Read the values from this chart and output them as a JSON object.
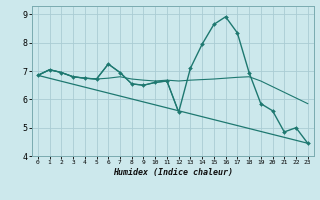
{
  "title": "",
  "xlabel": "Humidex (Indice chaleur)",
  "bg_color": "#cce8ec",
  "grid_color": "#aaccd4",
  "line_color": "#1e7870",
  "xlim": [
    -0.5,
    23.5
  ],
  "ylim": [
    4,
    9.3
  ],
  "yticks": [
    4,
    5,
    6,
    7,
    8,
    9
  ],
  "xticks": [
    0,
    1,
    2,
    3,
    4,
    5,
    6,
    7,
    8,
    9,
    10,
    11,
    12,
    13,
    14,
    15,
    16,
    17,
    18,
    19,
    20,
    21,
    22,
    23
  ],
  "series": [
    {
      "x": [
        0,
        1,
        2,
        3,
        4,
        5,
        6,
        7,
        8,
        9,
        10,
        11,
        12,
        13,
        14,
        15,
        16,
        17,
        18,
        19,
        20,
        21,
        22,
        23
      ],
      "y": [
        6.85,
        7.05,
        6.95,
        6.8,
        6.75,
        6.72,
        7.25,
        6.95,
        6.55,
        6.5,
        6.6,
        6.65,
        5.55,
        7.1,
        7.95,
        8.65,
        8.92,
        8.35,
        6.95,
        5.85,
        5.6,
        4.85,
        5.0,
        4.45
      ],
      "linewidth": 1.0,
      "markersize": 2.0
    },
    {
      "x": [
        0,
        23
      ],
      "y": [
        6.85,
        4.45
      ],
      "linewidth": 0.9,
      "markersize": 0
    },
    {
      "x": [
        0,
        1,
        2,
        3,
        4,
        5,
        6,
        7,
        8,
        9,
        10,
        11,
        12,
        13,
        14,
        15,
        16,
        17,
        18,
        19,
        20,
        21,
        22,
        23
      ],
      "y": [
        6.85,
        7.05,
        6.95,
        6.8,
        6.75,
        6.72,
        6.75,
        6.8,
        6.72,
        6.68,
        6.65,
        6.68,
        6.65,
        6.68,
        6.7,
        6.72,
        6.75,
        6.78,
        6.8,
        6.65,
        6.45,
        6.25,
        6.05,
        5.85
      ],
      "linewidth": 0.8,
      "markersize": 0
    },
    {
      "x": [
        0,
        1,
        2,
        3,
        4,
        5,
        6,
        7,
        8,
        9,
        10,
        11,
        12
      ],
      "y": [
        6.85,
        7.05,
        6.95,
        6.8,
        6.75,
        6.72,
        7.25,
        6.95,
        6.55,
        6.5,
        6.6,
        6.65,
        5.55
      ],
      "linewidth": 0.8,
      "markersize": 0
    }
  ],
  "tick_fontsize_x": 4.5,
  "tick_fontsize_y": 6.0,
  "xlabel_fontsize": 6.0
}
